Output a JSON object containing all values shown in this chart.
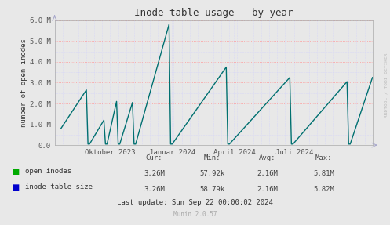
{
  "title": "Inode table usage - by year",
  "ylabel": "number of open inodes",
  "bg_color": "#e8e8e8",
  "plot_bg_color": "#e8e8e8",
  "grid_color_major": "#ff9999",
  "grid_color_minor": "#ccccff",
  "line_color": "#007070",
  "ylim": [
    0,
    6000000
  ],
  "yticks": [
    0,
    1000000,
    2000000,
    3000000,
    4000000,
    5000000,
    6000000
  ],
  "ytick_labels": [
    "0.0",
    "1.0 M",
    "2.0 M",
    "3.0 M",
    "4.0 M",
    "5.0 M",
    "6.0 M"
  ],
  "xtick_labels": [
    "Oktober 2023",
    "Januar 2024",
    "April 2024",
    "Juli 2024"
  ],
  "xtick_positions": [
    0.175,
    0.37,
    0.565,
    0.755
  ],
  "watermark": "RRDTOOL / TOBI OETIKER",
  "footer_munin": "Munin 2.0.57",
  "footer_lastupdate": "Last update: Sun Sep 22 00:00:02 2024",
  "legend_entries": [
    "open inodes",
    "inode table size"
  ],
  "legend_colors": [
    "#00aa00",
    "#0000cc"
  ],
  "stats_header": [
    "Cur:",
    "Min:",
    "Avg:",
    "Max:"
  ],
  "stats_row1": [
    "3.26M",
    "57.92k",
    "2.16M",
    "5.81M"
  ],
  "stats_row2": [
    "3.26M",
    "58.79k",
    "2.16M",
    "5.82M"
  ],
  "open_inodes_x": [
    0.02,
    0.1,
    0.105,
    0.11,
    0.155,
    0.16,
    0.165,
    0.195,
    0.2,
    0.205,
    0.245,
    0.25,
    0.255,
    0.36,
    0.365,
    0.37,
    0.54,
    0.545,
    0.55,
    0.74,
    0.745,
    0.75,
    0.92,
    0.925,
    0.93,
    1.0
  ],
  "open_inodes_y": [
    800000,
    2650000,
    50000,
    50000,
    1200000,
    50000,
    50000,
    2100000,
    50000,
    50000,
    2050000,
    50000,
    50000,
    5800000,
    50000,
    50000,
    3750000,
    50000,
    50000,
    3250000,
    50000,
    50000,
    3050000,
    50000,
    50000,
    3250000
  ]
}
